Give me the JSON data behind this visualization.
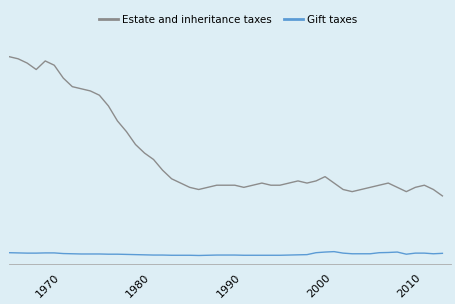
{
  "legend_labels": [
    "Estate and inheritance taxes",
    "Gift taxes"
  ],
  "legend_colors": [
    "#8c8c8c",
    "#5b9bd5"
  ],
  "plot_bg_color": "#ddeef5",
  "header_bg_color": "#d8d8d8",
  "xlim": [
    1965,
    2014
  ],
  "ylim": [
    0,
    1.05
  ],
  "xticks": [
    1970,
    1980,
    1990,
    2000,
    2010
  ],
  "estate_data": {
    "years": [
      1965,
      1966,
      1967,
      1968,
      1969,
      1970,
      1971,
      1972,
      1973,
      1974,
      1975,
      1976,
      1977,
      1978,
      1979,
      1980,
      1981,
      1982,
      1983,
      1984,
      1985,
      1986,
      1987,
      1988,
      1989,
      1990,
      1991,
      1992,
      1993,
      1994,
      1995,
      1996,
      1997,
      1998,
      1999,
      2000,
      2001,
      2002,
      2003,
      2004,
      2005,
      2006,
      2007,
      2008,
      2009,
      2010,
      2011,
      2012,
      2013
    ],
    "values": [
      0.97,
      0.96,
      0.94,
      0.91,
      0.95,
      0.93,
      0.87,
      0.83,
      0.82,
      0.81,
      0.79,
      0.74,
      0.67,
      0.62,
      0.56,
      0.52,
      0.49,
      0.44,
      0.4,
      0.38,
      0.36,
      0.35,
      0.36,
      0.37,
      0.37,
      0.37,
      0.36,
      0.37,
      0.38,
      0.37,
      0.37,
      0.38,
      0.39,
      0.38,
      0.39,
      0.41,
      0.38,
      0.35,
      0.34,
      0.35,
      0.36,
      0.37,
      0.38,
      0.36,
      0.34,
      0.36,
      0.37,
      0.35,
      0.32
    ]
  },
  "gift_data": {
    "years": [
      1965,
      1966,
      1967,
      1968,
      1969,
      1970,
      1971,
      1972,
      1973,
      1974,
      1975,
      1976,
      1977,
      1978,
      1979,
      1980,
      1981,
      1982,
      1983,
      1984,
      1985,
      1986,
      1987,
      1988,
      1989,
      1990,
      1991,
      1992,
      1993,
      1994,
      1995,
      1996,
      1997,
      1998,
      1999,
      2000,
      2001,
      2002,
      2003,
      2004,
      2005,
      2006,
      2007,
      2008,
      2009,
      2010,
      2011,
      2012,
      2013
    ],
    "values": [
      0.055,
      0.054,
      0.053,
      0.053,
      0.054,
      0.054,
      0.051,
      0.05,
      0.049,
      0.049,
      0.049,
      0.048,
      0.048,
      0.047,
      0.046,
      0.045,
      0.044,
      0.044,
      0.043,
      0.043,
      0.043,
      0.042,
      0.043,
      0.044,
      0.044,
      0.044,
      0.043,
      0.043,
      0.043,
      0.043,
      0.043,
      0.044,
      0.045,
      0.046,
      0.055,
      0.058,
      0.06,
      0.053,
      0.05,
      0.05,
      0.05,
      0.055,
      0.056,
      0.058,
      0.048,
      0.053,
      0.053,
      0.05,
      0.052
    ]
  },
  "line_width": 1.0
}
